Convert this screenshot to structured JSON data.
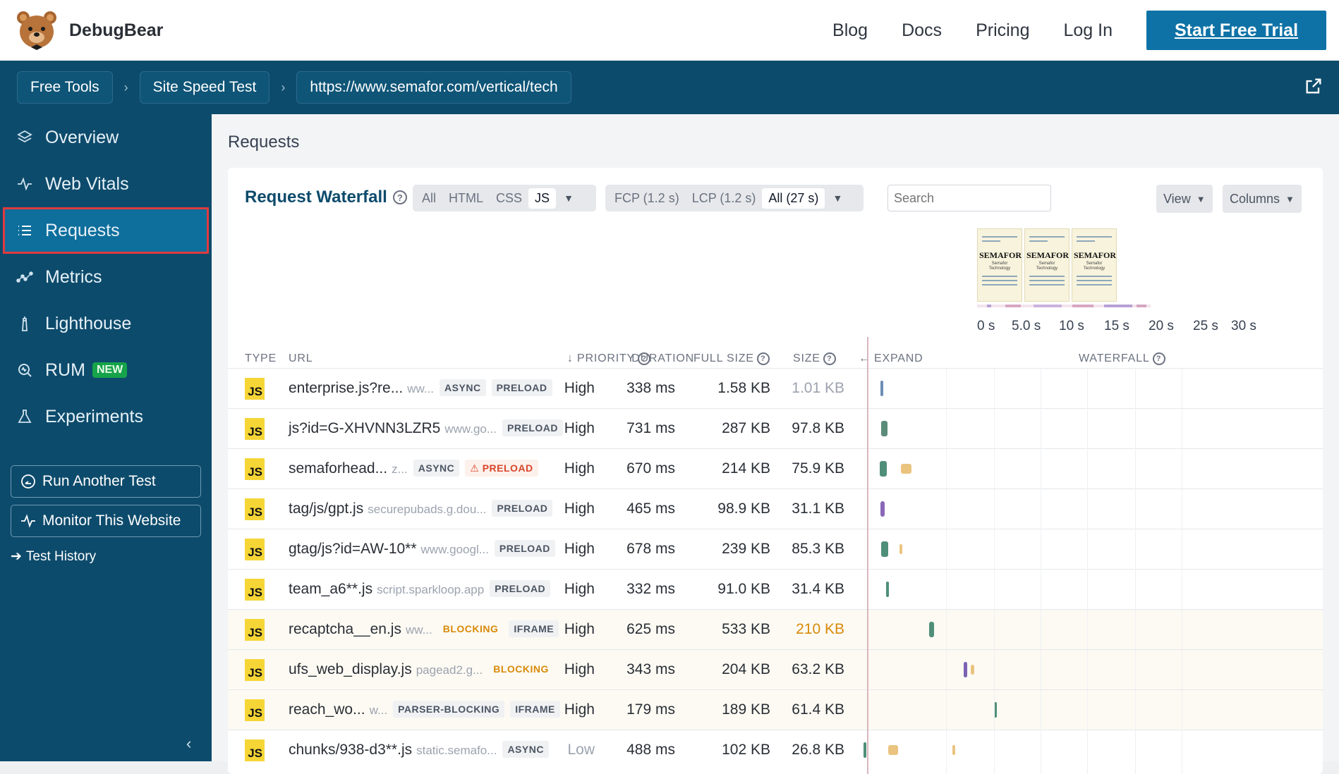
{
  "brand": {
    "name": "DebugBear"
  },
  "topnav": {
    "blog": "Blog",
    "docs": "Docs",
    "pricing": "Pricing",
    "login": "Log In",
    "cta": "Start Free Trial"
  },
  "breadcrumb": {
    "items": [
      "Free Tools",
      "Site Speed Test",
      "https://www.semafor.com/vertical/tech"
    ],
    "separator": "›"
  },
  "sidebar": {
    "items": [
      {
        "label": "Overview",
        "icon": "layers-icon"
      },
      {
        "label": "Web Vitals",
        "icon": "pulse-icon"
      },
      {
        "label": "Requests",
        "icon": "list-icon",
        "active": true
      },
      {
        "label": "Metrics",
        "icon": "metrics-icon"
      },
      {
        "label": "Lighthouse",
        "icon": "lighthouse-icon"
      },
      {
        "label": "RUM",
        "icon": "rum-icon",
        "badge": "NEW"
      },
      {
        "label": "Experiments",
        "icon": "flask-icon"
      }
    ],
    "run_another": "Run Another Test",
    "monitor": "Monitor This Website",
    "history": "Test History",
    "history_arrow": "➔",
    "collapse": "‹"
  },
  "main": {
    "page_title": "Requests",
    "card_title": "Request Waterfall",
    "help": "?",
    "type_filter": [
      "All",
      "HTML",
      "CSS",
      "JS"
    ],
    "type_selected": "JS",
    "time_filter": [
      "FCP (1.2 s)",
      "LCP (1.2 s)",
      "All (27 s)"
    ],
    "time_selected": "All (27 s)",
    "search_placeholder": "Search",
    "view_label": "View",
    "columns_label": "Columns",
    "filmstrip": [
      {
        "title": "SEMAFOR",
        "sub": "Semafor Technology"
      },
      {
        "title": "SEMAFOR",
        "sub": "Semafor Technology"
      },
      {
        "title": "SEMAFOR",
        "sub": "Semafor Technology"
      }
    ],
    "axis_ticks": [
      "0 s",
      "5.0 s",
      "10 s",
      "15 s",
      "20 s",
      "25 s",
      "30 s"
    ],
    "columns": {
      "type": "TYPE",
      "url": "URL",
      "priority": "↓ PRIORITY",
      "duration": "DURATION",
      "full_size": "FULL SIZE",
      "size": "SIZE",
      "expand": "← EXPAND",
      "waterfall": "WATERFALL"
    },
    "rows": [
      {
        "type": "JS",
        "file": "enterprise.js?re...",
        "host": "ww...",
        "tags": [
          "ASYNC",
          "PRELOAD"
        ],
        "priority": "High",
        "duration": "338 ms",
        "full_size": "1.58 KB",
        "size": "1.01 KB",
        "size_style": "muted"
      },
      {
        "type": "JS",
        "file": "js?id=G-XHVNN3LZR5",
        "host": "www.go...",
        "tags": [
          "PRELOAD"
        ],
        "priority": "High",
        "duration": "731 ms",
        "full_size": "287 KB",
        "size": "97.8 KB"
      },
      {
        "type": "JS",
        "file": "semaforhead...",
        "host": "z...",
        "tags": [
          "ASYNC",
          "⚠ PRELOAD"
        ],
        "priority": "High",
        "duration": "670 ms",
        "full_size": "214 KB",
        "size": "75.9 KB"
      },
      {
        "type": "JS",
        "file": "tag/js/gpt.js",
        "host": "securepubads.g.dou...",
        "tags": [
          "PRELOAD"
        ],
        "priority": "High",
        "duration": "465 ms",
        "full_size": "98.9 KB",
        "size": "31.1 KB"
      },
      {
        "type": "JS",
        "file": "gtag/js?id=AW-10**",
        "host": "www.googl...",
        "tags": [
          "PRELOAD"
        ],
        "priority": "High",
        "duration": "678 ms",
        "full_size": "239 KB",
        "size": "85.3 KB"
      },
      {
        "type": "JS",
        "file": "team_a6**.js",
        "host": "script.sparkloop.app",
        "tags": [
          "PRELOAD"
        ],
        "priority": "High",
        "duration": "332 ms",
        "full_size": "91.0 KB",
        "size": "31.4 KB"
      },
      {
        "type": "JS",
        "file": "recaptcha__en.js",
        "host": "ww...",
        "tags": [
          "BLOCKING",
          "IFRAME"
        ],
        "priority": "High",
        "duration": "625 ms",
        "full_size": "533 KB",
        "size": "210 KB",
        "size_style": "orange",
        "highlight": true
      },
      {
        "type": "JS",
        "file": "ufs_web_display.js",
        "host": "pagead2.g...",
        "tags": [
          "BLOCKING"
        ],
        "priority": "High",
        "duration": "343 ms",
        "full_size": "204 KB",
        "size": "63.2 KB",
        "highlight": true
      },
      {
        "type": "JS",
        "file": "reach_wo...",
        "host": "w...",
        "tags": [
          "PARSER-BLOCKING",
          "IFRAME"
        ],
        "priority": "High",
        "duration": "179 ms",
        "full_size": "189 KB",
        "size": "61.4 KB",
        "highlight": true
      },
      {
        "type": "JS",
        "file": "chunks/938-d3**.js",
        "host": "static.semafo...",
        "tags": [
          "ASYNC"
        ],
        "priority": "Low",
        "duration": "488 ms",
        "full_size": "102 KB",
        "size": "26.8 KB",
        "priority_style": "muted"
      }
    ],
    "waterfall_bars": [
      [
        {
          "start": 1.5,
          "dur": 0.3,
          "color": "#6d8fb5"
        }
      ],
      [
        {
          "start": 1.6,
          "dur": 0.7,
          "color": "#5b8c7a"
        }
      ],
      [
        {
          "start": 1.4,
          "dur": 0.8,
          "color": "#4f8f7a"
        },
        {
          "start": 3.8,
          "dur": 1.2,
          "color": "#eac47f"
        }
      ],
      [
        {
          "start": 1.5,
          "dur": 0.5,
          "color": "#8a68b8"
        }
      ],
      [
        {
          "start": 1.6,
          "dur": 0.8,
          "color": "#4f8f7a"
        },
        {
          "start": 3.6,
          "dur": 0.2,
          "color": "#eac47f"
        }
      ],
      [
        {
          "start": 2.1,
          "dur": 0.3,
          "color": "#4f8f7a"
        }
      ],
      [
        {
          "start": 6.9,
          "dur": 0.6,
          "color": "#4f8f7a"
        }
      ],
      [
        {
          "start": 10.8,
          "dur": 0.4,
          "color": "#7b62b3"
        },
        {
          "start": 11.6,
          "dur": 0.4,
          "color": "#eac47f"
        }
      ],
      [
        {
          "start": 14.2,
          "dur": 0.3,
          "color": "#4f8f7a"
        }
      ],
      [
        {
          "start": -0.4,
          "dur": 0.3,
          "color": "#4f8f7a"
        },
        {
          "start": 2.4,
          "dur": 1.1,
          "color": "#eac47f"
        },
        {
          "start": 9.5,
          "dur": 0.2,
          "color": "#eac47f"
        }
      ]
    ],
    "colors": {
      "accent": "#0e72a6",
      "sidebar": "#0d4b6c",
      "active_outline": "#e03a3e",
      "js_badge": "#f6d637",
      "blocking": "#d98a09"
    }
  }
}
